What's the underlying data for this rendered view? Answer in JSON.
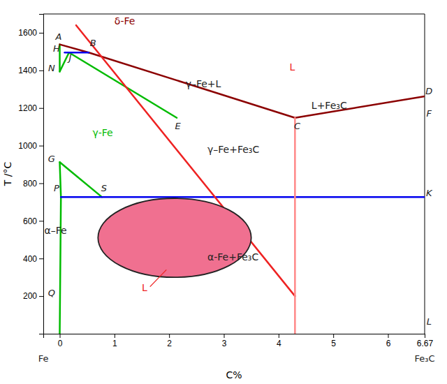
{
  "chart_data": {
    "type": "line",
    "x_label": "C%",
    "y_label": "T /°C",
    "xlim": [
      -0.3,
      6.67
    ],
    "ylim": [
      0,
      1700
    ],
    "xticks": [
      0,
      1,
      2,
      3,
      4,
      5,
      6,
      6.67
    ],
    "yticks": [
      200,
      400,
      600,
      800,
      1000,
      1200,
      1400,
      1600
    ],
    "grid": false,
    "series": [
      {
        "x": [
          0,
          0
        ],
        "values": [
          1538,
          1394
        ],
        "color": "#00bb00"
      },
      {
        "x": [
          0,
          0.17
        ],
        "values": [
          1394,
          1495
        ],
        "color": "#00bb00"
      },
      {
        "x": [
          0.17,
          2.14
        ],
        "values": [
          1495,
          1148
        ],
        "color": "#00bb00"
      },
      {
        "x": [
          0,
          0.77
        ],
        "values": [
          912,
          727
        ],
        "color": "#00bb00"
      },
      {
        "x": [
          0,
          0.022
        ],
        "values": [
          912,
          727
        ],
        "color": "#00bb00"
      },
      {
        "x": [
          0,
          0.022
        ],
        "values": [
          0,
          727
        ],
        "color": "#00bb00"
      },
      {
        "x": [
          0,
          0.53
        ],
        "values": [
          1538,
          1495
        ],
        "color": "#8b0000"
      },
      {
        "x": [
          0.53,
          4.3
        ],
        "values": [
          1495,
          1148
        ],
        "color": "#8b0000"
      },
      {
        "x": [
          4.3,
          6.67
        ],
        "values": [
          1148,
          1262
        ],
        "color": "#8b0000"
      },
      {
        "x": [
          0.09,
          0.53
        ],
        "values": [
          1495,
          1495
        ],
        "color": "#0000ee"
      },
      {
        "x": [
          0.022,
          6.67
        ],
        "values": [
          727,
          727
        ],
        "color": "#0000ee"
      },
      {
        "x": [
          0.3,
          4.3
        ],
        "values": [
          1640,
          200
        ],
        "color": "#ee2222"
      },
      {
        "x": [
          4.3,
          4.3
        ],
        "values": [
          0,
          1148
        ],
        "color": "#ff8888"
      }
    ],
    "ellipse": {
      "cx": 2.1,
      "cy": 510,
      "rx": 1.4,
      "ry": 210,
      "color": "#f07090",
      "edge_color": "#222222"
    },
    "point_labels": [
      {
        "text": "A",
        "x": -0.02,
        "y": 1563
      },
      {
        "text": "B",
        "x": 0.61,
        "y": 1530
      },
      {
        "text": "H",
        "x": -0.06,
        "y": 1500
      },
      {
        "text": "J",
        "x": 0.19,
        "y": 1450
      },
      {
        "text": "N",
        "x": -0.15,
        "y": 1394
      },
      {
        "text": "D",
        "x": 6.75,
        "y": 1272
      },
      {
        "text": "E",
        "x": 2.16,
        "y": 1088
      },
      {
        "text": "C",
        "x": 4.34,
        "y": 1088
      },
      {
        "text": "F",
        "x": 6.75,
        "y": 1153
      },
      {
        "text": "G",
        "x": -0.15,
        "y": 912
      },
      {
        "text": "P",
        "x": -0.058,
        "y": 757
      },
      {
        "text": "S",
        "x": 0.81,
        "y": 757
      },
      {
        "text": "K",
        "x": 6.75,
        "y": 732
      },
      {
        "text": "Q",
        "x": -0.15,
        "y": 200
      },
      {
        "text": "L",
        "x": 6.75,
        "y": 50
      }
    ],
    "annotations": [
      {
        "text": "δ-Fe",
        "x": 1.0,
        "y": 1645,
        "color": "#8b0000"
      },
      {
        "text": "L",
        "x": 4.2,
        "y": 1400,
        "color": "#ee2222"
      },
      {
        "text": "γ–Fe+L",
        "x": 2.3,
        "y": 1310,
        "color": "#222222"
      },
      {
        "text": "γ-Fe",
        "x": 0.6,
        "y": 1050,
        "color": "#00bb00"
      },
      {
        "text": "γ–Fe+Fe₃C",
        "x": 2.7,
        "y": 960,
        "color": "#222222"
      },
      {
        "text": "L+Fe₃C",
        "x": 4.6,
        "y": 1195,
        "color": "#222222"
      },
      {
        "text": "α-Fe+Fe₃C",
        "x": 2.7,
        "y": 390,
        "color": "#222222"
      },
      {
        "text": "α–Fe",
        "x": -0.28,
        "y": 530,
        "color": "#222222"
      },
      {
        "text": "L",
        "x": 1.5,
        "y": 225,
        "color": "#ee2222",
        "line": {
          "x": [
            1.65,
            1.95
          ],
          "y": [
            250,
            340
          ]
        }
      }
    ],
    "end_labels": [
      {
        "text": "Fe",
        "x": -0.3
      },
      {
        "text": "Fe₃C",
        "x": 6.67
      }
    ]
  }
}
